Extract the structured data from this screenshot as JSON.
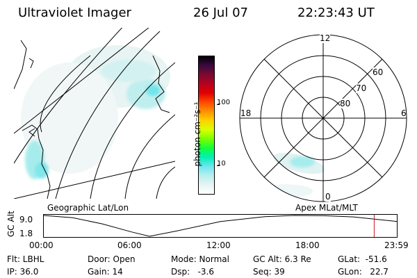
{
  "header": {
    "title": "Ultraviolet Imager",
    "date": "26 Jul 07",
    "time": "22:23:43 UT"
  },
  "colorbar": {
    "unit_label": "photon cm⁻²s⁻¹",
    "ticks": [
      "100",
      "10"
    ],
    "colors": [
      "#000000",
      "#3a0a40",
      "#7a0a30",
      "#b80020",
      "#e00000",
      "#ff4800",
      "#ff9000",
      "#ffd200",
      "#d8ff00",
      "#7aff00",
      "#12ff3c",
      "#00f0b4",
      "#6ee6ee",
      "#b8eeee",
      "#e6f4f4",
      "#ffffff"
    ]
  },
  "polar_plot": {
    "mlt_labels": {
      "top": "12",
      "left": "18",
      "right": "6",
      "bottom": "0"
    },
    "lat_labels": [
      "60",
      "70",
      "80"
    ],
    "caption": "Apex MLat/MLT"
  },
  "map": {
    "caption": "Geographic Lat/Lon"
  },
  "timeline": {
    "y_axis_label": "GC Alt",
    "y_ticks": [
      "9.0",
      "1.8"
    ],
    "x_ticks": [
      "00:00",
      "06:00",
      "12:00",
      "18:00",
      "23:59"
    ],
    "marker_color": "#d01020"
  },
  "chart_data": {
    "type": "line",
    "title": "",
    "xlabel": "",
    "ylabel": "GC Alt",
    "x": [
      0,
      2,
      4,
      6,
      7.2,
      9,
      12,
      15,
      17,
      19,
      21,
      23.98
    ],
    "series": [
      {
        "values": [
          9.0,
          8.2,
          6.1,
          3.3,
          1.8,
          3.6,
          6.9,
          8.6,
          9.0,
          8.9,
          8.5,
          6.9
        ]
      }
    ],
    "xlim": [
      0,
      23.98
    ],
    "ylim": [
      1.8,
      9.0
    ],
    "marker_x": 22.4
  },
  "info": {
    "flt": "Flt: LBHL",
    "ip": "IP: 36.0",
    "door": "Door: Open",
    "gain": "Gain: 14",
    "mode": "Mode: Normal",
    "dsp": "Dsp:   -3.6",
    "gc_alt": "GC Alt: 6.3 Re",
    "seq": "Seq: 39",
    "glat": "GLat:  -51.6",
    "glon": "GLon:   22.7"
  }
}
